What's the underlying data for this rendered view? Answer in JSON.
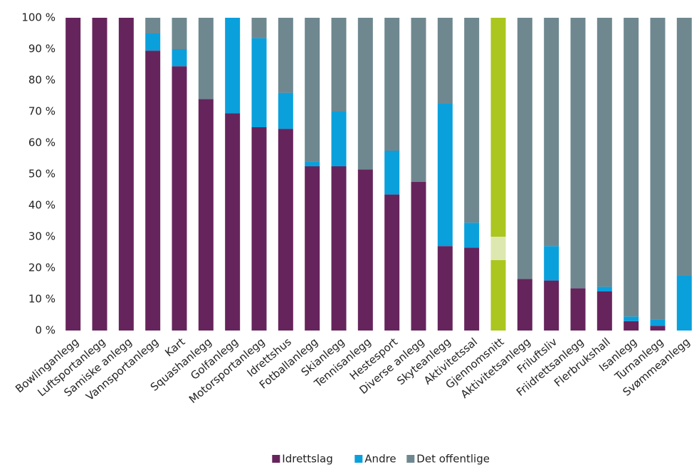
{
  "chart_data": {
    "type": "stacked_bar",
    "categories": [
      "Bowlinganlegg",
      "Luftsportanlegg",
      "Samiske anlegg",
      "Vannsportanlegg",
      "Kart",
      "Squashanlegg",
      "Golfanlegg",
      "Motorsportanlegg",
      "Idrettshus",
      "Fotballanlegg",
      "Skianlegg",
      "Tennisanlegg",
      "Hestesport",
      "Diverse anlegg",
      "Skyteanlegg",
      "Aktivitetssal",
      "Gjennomsnitt",
      "Aktivitetsanlegg",
      "Friluftsliv",
      "Friidrettsanlegg",
      "Flerbrukshall",
      "Isanlegg",
      "Turnanlegg",
      "Svømmeanlegg"
    ],
    "series": [
      {
        "name": "Idrettslag",
        "color": "#66245c",
        "values": [
          100,
          100,
          100,
          89.5,
          84.5,
          74,
          69.5,
          65,
          64.5,
          52.5,
          52.5,
          51.5,
          43.5,
          47.5,
          27,
          26.5,
          22.5,
          16.5,
          16,
          13.5,
          12.5,
          3,
          1.5,
          0
        ]
      },
      {
        "name": "Andre",
        "color": "#0aa0dc",
        "values": [
          0,
          0,
          0,
          5.5,
          5.5,
          0,
          30.5,
          28.5,
          11.5,
          1.5,
          17.5,
          0,
          14,
          0,
          45.5,
          8,
          7.5,
          0,
          11,
          0,
          1.5,
          1.5,
          2,
          17.5
        ]
      },
      {
        "name": "Det offentlige",
        "color": "#6f8890",
        "values": [
          0,
          0,
          0,
          5,
          10,
          26,
          0,
          6.5,
          24,
          46,
          30,
          48.5,
          42.5,
          52.5,
          27.5,
          65.5,
          70,
          83.5,
          73,
          86.5,
          86,
          95.5,
          96.5,
          82.5
        ]
      }
    ],
    "highlight": {
      "category": "Gjennomsnitt",
      "colors": [
        "#abc61e",
        "#dde8b0",
        "#abc61e"
      ]
    },
    "ylim": [
      0,
      100
    ],
    "yticks": [
      {
        "value": 0,
        "label": "0 %"
      },
      {
        "value": 10,
        "label": "10 %"
      },
      {
        "value": 20,
        "label": "20 %"
      },
      {
        "value": 30,
        "label": "30 %"
      },
      {
        "value": 40,
        "label": "40 %"
      },
      {
        "value": 50,
        "label": "50 %"
      },
      {
        "value": 60,
        "label": "60 %"
      },
      {
        "value": 70,
        "label": "70 %"
      },
      {
        "value": 80,
        "label": "80 %"
      },
      {
        "value": 90,
        "label": "90 %"
      },
      {
        "value": 100,
        "label": "100 %"
      }
    ],
    "legend": "bottom"
  }
}
